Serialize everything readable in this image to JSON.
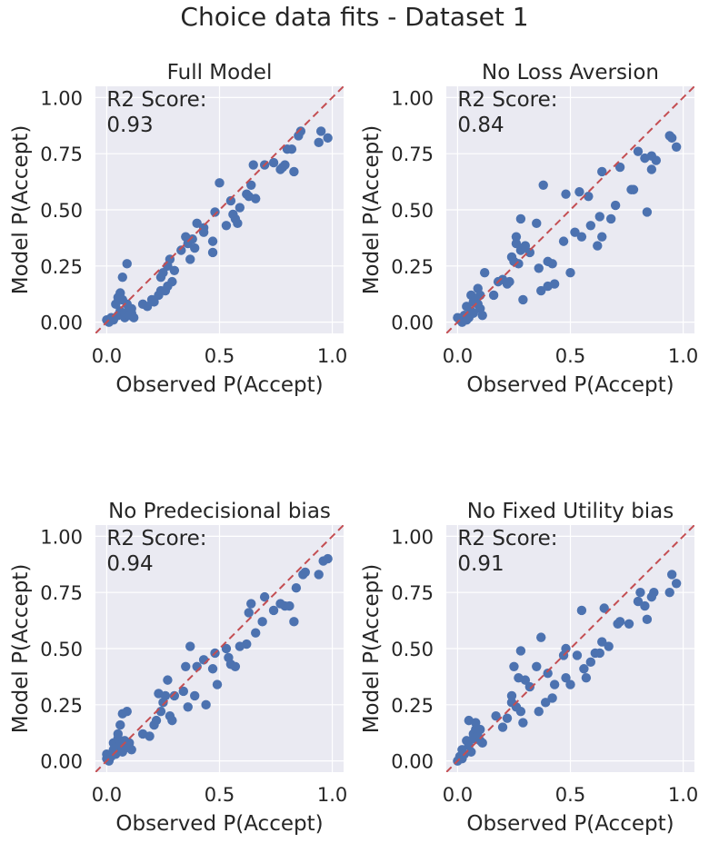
{
  "figure": {
    "title": "Choice data fits - Dataset 1"
  },
  "chart_data": [
    {
      "type": "scatter",
      "title": "Full Model",
      "xlabel": "Observed P(Accept)",
      "ylabel": "Model P(Accept)",
      "score_label": "R2 Score:",
      "score_value": "0.93",
      "xlim": [
        -0.05,
        1.05
      ],
      "ylim": [
        -0.05,
        1.05
      ],
      "xticks": [
        0.0,
        0.5,
        1.0
      ],
      "xtick_labels": [
        "0.0",
        "0.5",
        "1.0"
      ],
      "yticks": [
        0.0,
        0.25,
        0.5,
        0.75,
        1.0
      ],
      "ytick_labels": [
        "0.00",
        "0.25",
        "0.50",
        "0.75",
        "1.00"
      ],
      "grid": true,
      "background": "#eaeaf2",
      "point_color": "#4c72b0",
      "line_color": "#c44e52",
      "points": [
        [
          0.0,
          0.01
        ],
        [
          0.01,
          0.0
        ],
        [
          0.02,
          0.02
        ],
        [
          0.03,
          0.01
        ],
        [
          0.04,
          0.08
        ],
        [
          0.05,
          0.03
        ],
        [
          0.05,
          0.11
        ],
        [
          0.06,
          0.13
        ],
        [
          0.06,
          0.05
        ],
        [
          0.07,
          0.2
        ],
        [
          0.07,
          0.1
        ],
        [
          0.08,
          0.04
        ],
        [
          0.08,
          0.02
        ],
        [
          0.09,
          0.26
        ],
        [
          0.09,
          0.08
        ],
        [
          0.1,
          0.06
        ],
        [
          0.1,
          0.03
        ],
        [
          0.11,
          0.04
        ],
        [
          0.11,
          0.06
        ],
        [
          0.12,
          0.02
        ],
        [
          0.16,
          0.08
        ],
        [
          0.18,
          0.07
        ],
        [
          0.2,
          0.1
        ],
        [
          0.21,
          0.09
        ],
        [
          0.23,
          0.12
        ],
        [
          0.24,
          0.14
        ],
        [
          0.24,
          0.2
        ],
        [
          0.25,
          0.22
        ],
        [
          0.26,
          0.14
        ],
        [
          0.27,
          0.16
        ],
        [
          0.27,
          0.25
        ],
        [
          0.28,
          0.28
        ],
        [
          0.29,
          0.18
        ],
        [
          0.3,
          0.23
        ],
        [
          0.33,
          0.32
        ],
        [
          0.35,
          0.38
        ],
        [
          0.36,
          0.35
        ],
        [
          0.37,
          0.28
        ],
        [
          0.38,
          0.37
        ],
        [
          0.39,
          0.33
        ],
        [
          0.4,
          0.44
        ],
        [
          0.43,
          0.42
        ],
        [
          0.43,
          0.4
        ],
        [
          0.47,
          0.31
        ],
        [
          0.47,
          0.36
        ],
        [
          0.48,
          0.49
        ],
        [
          0.5,
          0.62
        ],
        [
          0.53,
          0.43
        ],
        [
          0.55,
          0.54
        ],
        [
          0.56,
          0.48
        ],
        [
          0.57,
          0.46
        ],
        [
          0.58,
          0.44
        ],
        [
          0.59,
          0.51
        ],
        [
          0.62,
          0.57
        ],
        [
          0.63,
          0.56
        ],
        [
          0.64,
          0.61
        ],
        [
          0.65,
          0.7
        ],
        [
          0.66,
          0.55
        ],
        [
          0.7,
          0.7
        ],
        [
          0.74,
          0.71
        ],
        [
          0.77,
          0.68
        ],
        [
          0.78,
          0.69
        ],
        [
          0.79,
          0.7
        ],
        [
          0.8,
          0.77
        ],
        [
          0.82,
          0.77
        ],
        [
          0.83,
          0.67
        ],
        [
          0.85,
          0.83
        ],
        [
          0.86,
          0.85
        ],
        [
          0.94,
          0.8
        ],
        [
          0.95,
          0.85
        ],
        [
          0.98,
          0.82
        ]
      ]
    },
    {
      "type": "scatter",
      "title": "No Loss Aversion",
      "xlabel": "Observed P(Accept)",
      "ylabel": "Model P(Accept)",
      "score_label": "R2 Score:",
      "score_value": "0.84",
      "xlim": [
        -0.05,
        1.05
      ],
      "ylim": [
        -0.05,
        1.05
      ],
      "xticks": [
        0.0,
        0.5,
        1.0
      ],
      "xtick_labels": [
        "0.0",
        "0.5",
        "1.0"
      ],
      "yticks": [
        0.0,
        0.25,
        0.5,
        0.75,
        1.0
      ],
      "ytick_labels": [
        "0.00",
        "0.25",
        "0.50",
        "0.75",
        "1.00"
      ],
      "grid": true,
      "background": "#eaeaf2",
      "point_color": "#4c72b0",
      "line_color": "#c44e52",
      "points": [
        [
          0.0,
          0.02
        ],
        [
          0.01,
          0.01
        ],
        [
          0.02,
          0.0
        ],
        [
          0.03,
          0.03
        ],
        [
          0.04,
          0.01
        ],
        [
          0.04,
          0.07
        ],
        [
          0.05,
          0.02
        ],
        [
          0.06,
          0.12
        ],
        [
          0.06,
          0.05
        ],
        [
          0.07,
          0.09
        ],
        [
          0.07,
          0.04
        ],
        [
          0.08,
          0.1
        ],
        [
          0.09,
          0.15
        ],
        [
          0.09,
          0.08
        ],
        [
          0.1,
          0.06
        ],
        [
          0.1,
          0.12
        ],
        [
          0.11,
          0.03
        ],
        [
          0.12,
          0.22
        ],
        [
          0.16,
          0.12
        ],
        [
          0.18,
          0.18
        ],
        [
          0.2,
          0.19
        ],
        [
          0.22,
          0.17
        ],
        [
          0.23,
          0.18
        ],
        [
          0.24,
          0.29
        ],
        [
          0.25,
          0.27
        ],
        [
          0.26,
          0.35
        ],
        [
          0.26,
          0.38
        ],
        [
          0.27,
          0.26
        ],
        [
          0.28,
          0.32
        ],
        [
          0.28,
          0.46
        ],
        [
          0.29,
          0.1
        ],
        [
          0.29,
          0.33
        ],
        [
          0.3,
          0.34
        ],
        [
          0.32,
          0.31
        ],
        [
          0.35,
          0.44
        ],
        [
          0.36,
          0.24
        ],
        [
          0.37,
          0.14
        ],
        [
          0.38,
          0.61
        ],
        [
          0.4,
          0.16
        ],
        [
          0.4,
          0.27
        ],
        [
          0.42,
          0.26
        ],
        [
          0.43,
          0.17
        ],
        [
          0.47,
          0.36
        ],
        [
          0.48,
          0.57
        ],
        [
          0.5,
          0.22
        ],
        [
          0.52,
          0.4
        ],
        [
          0.54,
          0.58
        ],
        [
          0.55,
          0.38
        ],
        [
          0.58,
          0.56
        ],
        [
          0.59,
          0.43
        ],
        [
          0.62,
          0.34
        ],
        [
          0.63,
          0.47
        ],
        [
          0.64,
          0.67
        ],
        [
          0.64,
          0.38
        ],
        [
          0.68,
          0.46
        ],
        [
          0.7,
          0.52
        ],
        [
          0.72,
          0.69
        ],
        [
          0.77,
          0.59
        ],
        [
          0.78,
          0.59
        ],
        [
          0.8,
          0.76
        ],
        [
          0.83,
          0.73
        ],
        [
          0.84,
          0.49
        ],
        [
          0.86,
          0.74
        ],
        [
          0.86,
          0.68
        ],
        [
          0.88,
          0.72
        ],
        [
          0.94,
          0.83
        ],
        [
          0.95,
          0.82
        ],
        [
          0.97,
          0.78
        ]
      ]
    },
    {
      "type": "scatter",
      "title": "No Predecisional bias",
      "xlabel": "Observed P(Accept)",
      "ylabel": "Model P(Accept)",
      "score_label": "R2 Score:",
      "score_value": "0.94",
      "xlim": [
        -0.05,
        1.05
      ],
      "ylim": [
        -0.05,
        1.05
      ],
      "xticks": [
        0.0,
        0.5,
        1.0
      ],
      "xtick_labels": [
        "0.0",
        "0.5",
        "1.0"
      ],
      "yticks": [
        0.0,
        0.25,
        0.5,
        0.75,
        1.0
      ],
      "ytick_labels": [
        "0.00",
        "0.25",
        "0.50",
        "0.75",
        "1.00"
      ],
      "grid": true,
      "background": "#eaeaf2",
      "point_color": "#4c72b0",
      "line_color": "#c44e52",
      "points": [
        [
          0.0,
          0.01
        ],
        [
          0.0,
          0.03
        ],
        [
          0.01,
          0.0
        ],
        [
          0.02,
          0.02
        ],
        [
          0.03,
          0.05
        ],
        [
          0.03,
          0.08
        ],
        [
          0.04,
          0.03
        ],
        [
          0.04,
          0.06
        ],
        [
          0.05,
          0.1
        ],
        [
          0.05,
          0.12
        ],
        [
          0.06,
          0.07
        ],
        [
          0.06,
          0.16
        ],
        [
          0.07,
          0.21
        ],
        [
          0.07,
          0.04
        ],
        [
          0.08,
          0.09
        ],
        [
          0.09,
          0.22
        ],
        [
          0.09,
          0.06
        ],
        [
          0.1,
          0.06
        ],
        [
          0.1,
          0.08
        ],
        [
          0.11,
          0.05
        ],
        [
          0.16,
          0.12
        ],
        [
          0.19,
          0.11
        ],
        [
          0.21,
          0.16
        ],
        [
          0.22,
          0.18
        ],
        [
          0.23,
          0.3
        ],
        [
          0.24,
          0.22
        ],
        [
          0.25,
          0.26
        ],
        [
          0.26,
          0.29
        ],
        [
          0.27,
          0.36
        ],
        [
          0.28,
          0.2
        ],
        [
          0.29,
          0.18
        ],
        [
          0.3,
          0.29
        ],
        [
          0.34,
          0.31
        ],
        [
          0.35,
          0.42
        ],
        [
          0.36,
          0.24
        ],
        [
          0.37,
          0.51
        ],
        [
          0.39,
          0.29
        ],
        [
          0.4,
          0.42
        ],
        [
          0.43,
          0.45
        ],
        [
          0.44,
          0.25
        ],
        [
          0.47,
          0.41
        ],
        [
          0.48,
          0.48
        ],
        [
          0.49,
          0.34
        ],
        [
          0.53,
          0.5
        ],
        [
          0.54,
          0.46
        ],
        [
          0.55,
          0.43
        ],
        [
          0.57,
          0.42
        ],
        [
          0.59,
          0.51
        ],
        [
          0.62,
          0.52
        ],
        [
          0.63,
          0.66
        ],
        [
          0.64,
          0.7
        ],
        [
          0.66,
          0.57
        ],
        [
          0.69,
          0.62
        ],
        [
          0.7,
          0.73
        ],
        [
          0.74,
          0.67
        ],
        [
          0.77,
          0.7
        ],
        [
          0.79,
          0.69
        ],
        [
          0.81,
          0.69
        ],
        [
          0.83,
          0.62
        ],
        [
          0.84,
          0.77
        ],
        [
          0.87,
          0.83
        ],
        [
          0.88,
          0.84
        ],
        [
          0.94,
          0.83
        ],
        [
          0.96,
          0.89
        ],
        [
          0.98,
          0.9
        ]
      ]
    },
    {
      "type": "scatter",
      "title": "No Fixed Utility bias",
      "xlabel": "Observed P(Accept)",
      "ylabel": "Model P(Accept)",
      "score_label": "R2 Score:",
      "score_value": "0.91",
      "xlim": [
        -0.05,
        1.05
      ],
      "ylim": [
        -0.05,
        1.05
      ],
      "xticks": [
        0.0,
        0.5,
        1.0
      ],
      "xtick_labels": [
        "0.0",
        "0.5",
        "1.0"
      ],
      "yticks": [
        0.0,
        0.25,
        0.5,
        0.75,
        1.0
      ],
      "ytick_labels": [
        "0.00",
        "0.25",
        "0.50",
        "0.75",
        "1.00"
      ],
      "grid": true,
      "background": "#eaeaf2",
      "point_color": "#4c72b0",
      "line_color": "#c44e52",
      "points": [
        [
          0.0,
          0.0
        ],
        [
          0.01,
          0.02
        ],
        [
          0.02,
          0.01
        ],
        [
          0.02,
          0.05
        ],
        [
          0.03,
          0.03
        ],
        [
          0.04,
          0.09
        ],
        [
          0.05,
          0.07
        ],
        [
          0.05,
          0.18
        ],
        [
          0.06,
          0.04
        ],
        [
          0.07,
          0.12
        ],
        [
          0.07,
          0.1
        ],
        [
          0.08,
          0.14
        ],
        [
          0.08,
          0.17
        ],
        [
          0.09,
          0.11
        ],
        [
          0.1,
          0.09
        ],
        [
          0.1,
          0.14
        ],
        [
          0.11,
          0.08
        ],
        [
          0.17,
          0.2
        ],
        [
          0.2,
          0.15
        ],
        [
          0.22,
          0.19
        ],
        [
          0.24,
          0.26
        ],
        [
          0.24,
          0.29
        ],
        [
          0.25,
          0.42
        ],
        [
          0.26,
          0.24
        ],
        [
          0.27,
          0.37
        ],
        [
          0.28,
          0.49
        ],
        [
          0.28,
          0.22
        ],
        [
          0.29,
          0.17
        ],
        [
          0.3,
          0.36
        ],
        [
          0.32,
          0.33
        ],
        [
          0.35,
          0.42
        ],
        [
          0.36,
          0.22
        ],
        [
          0.37,
          0.55
        ],
        [
          0.39,
          0.26
        ],
        [
          0.4,
          0.39
        ],
        [
          0.42,
          0.28
        ],
        [
          0.43,
          0.34
        ],
        [
          0.47,
          0.47
        ],
        [
          0.48,
          0.37
        ],
        [
          0.48,
          0.5
        ],
        [
          0.5,
          0.34
        ],
        [
          0.53,
          0.47
        ],
        [
          0.55,
          0.67
        ],
        [
          0.56,
          0.41
        ],
        [
          0.57,
          0.37
        ],
        [
          0.59,
          0.44
        ],
        [
          0.61,
          0.48
        ],
        [
          0.63,
          0.48
        ],
        [
          0.64,
          0.53
        ],
        [
          0.65,
          0.68
        ],
        [
          0.67,
          0.51
        ],
        [
          0.71,
          0.61
        ],
        [
          0.72,
          0.62
        ],
        [
          0.76,
          0.61
        ],
        [
          0.8,
          0.71
        ],
        [
          0.81,
          0.75
        ],
        [
          0.83,
          0.69
        ],
        [
          0.84,
          0.63
        ],
        [
          0.86,
          0.73
        ],
        [
          0.87,
          0.75
        ],
        [
          0.94,
          0.75
        ],
        [
          0.95,
          0.83
        ],
        [
          0.97,
          0.79
        ]
      ]
    }
  ]
}
